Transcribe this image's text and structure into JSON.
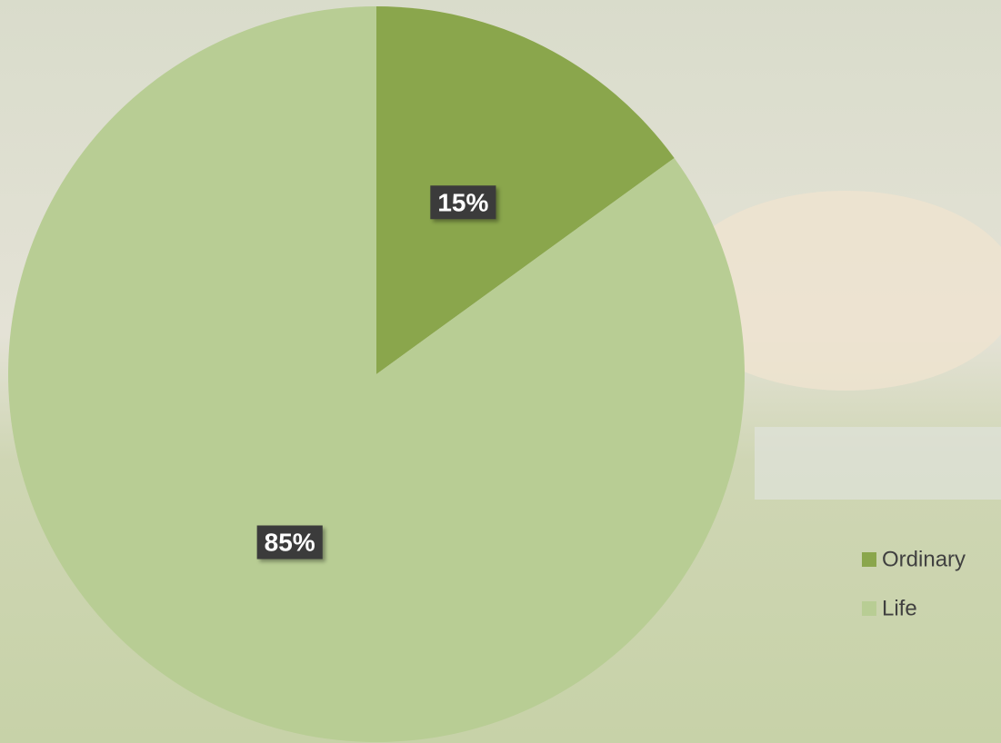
{
  "chart_data": {
    "type": "pie",
    "categories": [
      "Ordinary",
      "Life"
    ],
    "values": [
      15,
      85
    ],
    "value_labels": [
      "15%",
      "85%"
    ],
    "colors": [
      "#8aa64c",
      "#b8cd94"
    ],
    "legend": "right"
  }
}
